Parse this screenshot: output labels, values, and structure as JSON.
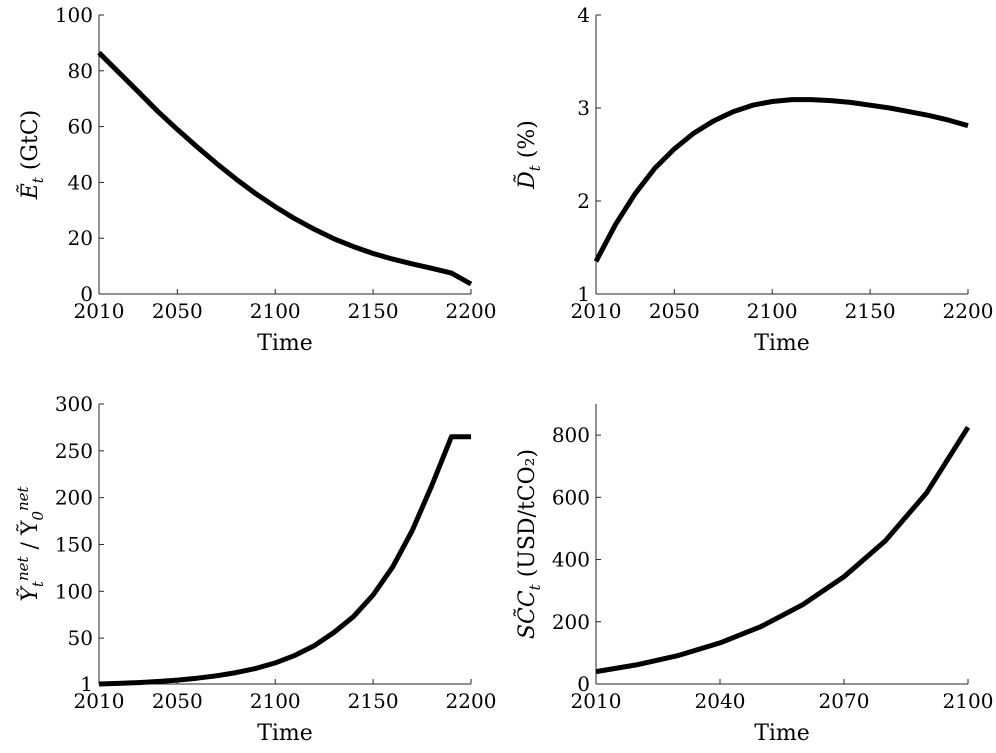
{
  "chart_data": [
    {
      "type": "line",
      "xlabel": "Time",
      "ylabel": "Ẽ_t (GtC)",
      "xlim": [
        2010,
        2200
      ],
      "ylim": [
        0,
        100
      ],
      "xticks": [
        2010,
        2050,
        2100,
        2150,
        2200
      ],
      "yticks": [
        0,
        20,
        40,
        60,
        80,
        100
      ],
      "grid": false,
      "x": [
        2010,
        2020,
        2030,
        2040,
        2050,
        2060,
        2070,
        2080,
        2090,
        2100,
        2110,
        2120,
        2130,
        2140,
        2150,
        2160,
        2170,
        2180,
        2190,
        2200
      ],
      "y": [
        86.5,
        79.5,
        72.5,
        65.5,
        59.0,
        52.8,
        46.8,
        41.2,
        36.0,
        31.3,
        27.0,
        23.2,
        19.8,
        17.0,
        14.5,
        12.5,
        10.8,
        9.2,
        7.5,
        3.6
      ]
    },
    {
      "type": "line",
      "xlabel": "Time",
      "ylabel": "D̃_t (%)",
      "xlim": [
        2010,
        2200
      ],
      "ylim": [
        1,
        4
      ],
      "xticks": [
        2010,
        2050,
        2100,
        2150,
        2200
      ],
      "yticks": [
        1,
        2,
        3,
        4
      ],
      "grid": false,
      "x": [
        2010,
        2020,
        2030,
        2040,
        2050,
        2060,
        2070,
        2080,
        2090,
        2100,
        2110,
        2120,
        2130,
        2140,
        2150,
        2160,
        2170,
        2180,
        2190,
        2200
      ],
      "y": [
        1.35,
        1.75,
        2.08,
        2.35,
        2.56,
        2.73,
        2.86,
        2.96,
        3.03,
        3.07,
        3.09,
        3.09,
        3.08,
        3.06,
        3.03,
        3.0,
        2.96,
        2.92,
        2.87,
        2.81
      ]
    },
    {
      "type": "line",
      "xlabel": "Time",
      "ylabel": "Ỹ_t^net / Ỹ_0^net",
      "xlim": [
        2010,
        2200
      ],
      "ylim": [
        1,
        300
      ],
      "xticks": [
        2010,
        2050,
        2100,
        2150,
        2200
      ],
      "yticks": [
        1,
        50,
        100,
        150,
        200,
        250,
        300
      ],
      "grid": false,
      "x": [
        2010,
        2020,
        2030,
        2040,
        2050,
        2060,
        2070,
        2080,
        2090,
        2100,
        2110,
        2120,
        2130,
        2140,
        2150,
        2160,
        2170,
        2180,
        2190,
        2200
      ],
      "y": [
        1,
        1.6,
        2.5,
        3.7,
        5.2,
        7.2,
        9.8,
        13.2,
        17.5,
        23.5,
        31.5,
        42,
        56,
        73,
        96,
        126,
        165,
        213,
        265,
        265
      ]
    },
    {
      "type": "line",
      "xlabel": "Time",
      "ylabel": "SC̃C_t (USD/tCO₂)",
      "xlim": [
        2010,
        2100
      ],
      "ylim": [
        0,
        900
      ],
      "xticks": [
        2010,
        2040,
        2070,
        2100
      ],
      "yticks": [
        0,
        200,
        400,
        600,
        800
      ],
      "grid": false,
      "x": [
        2010,
        2020,
        2030,
        2040,
        2050,
        2060,
        2070,
        2080,
        2090,
        2100
      ],
      "y": [
        40,
        62,
        92,
        132,
        185,
        255,
        345,
        460,
        615,
        825
      ]
    }
  ]
}
